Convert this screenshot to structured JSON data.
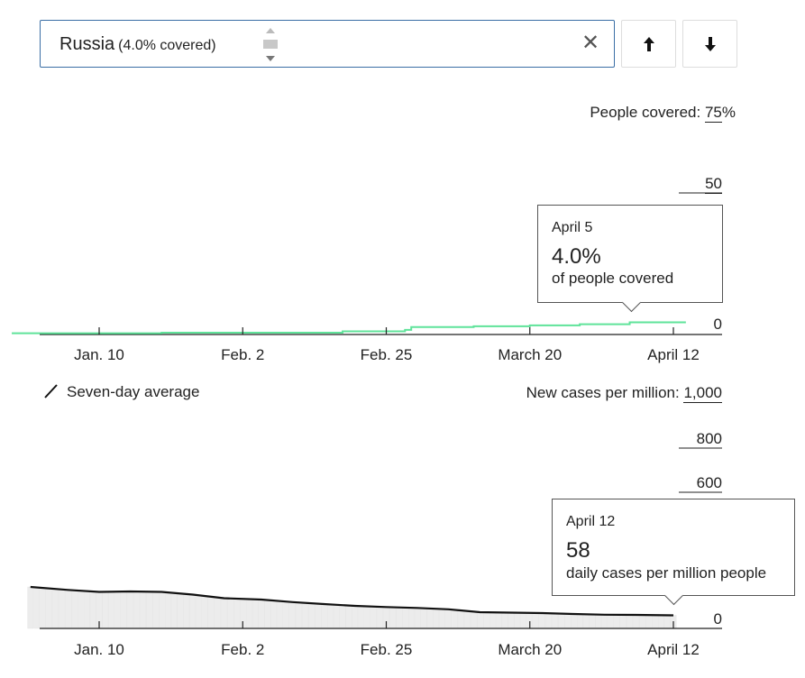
{
  "selector": {
    "country": "Russia",
    "covered_note": "(4.0% covered)",
    "clear_icon": "close-icon",
    "up_icon": "arrow-up-icon",
    "down_icon": "arrow-down-icon"
  },
  "colors": {
    "coverage_line": "#5fe39a",
    "cases_line": "#111111",
    "cases_fill": "#ececec",
    "axis": "#222222",
    "select_border": "#3a6ea5"
  },
  "vaccination_chart": {
    "label_prefix": "People covered:",
    "label_value": "75",
    "label_unit": "%",
    "gridline_label": "50",
    "baseline_label": "0",
    "tooltip": {
      "date": "April 5",
      "value": "4.0%",
      "description": "of people covered"
    }
  },
  "cases_chart": {
    "legend_label": "Seven-day average",
    "label_prefix": "New cases per million:",
    "label_value": "1,000",
    "gridline_800": "800",
    "gridline_600": "600",
    "baseline_label": "0",
    "tooltip": {
      "date": "April 12",
      "value": "58",
      "description": "daily cases per million people"
    }
  },
  "x_ticks": [
    "Jan. 10",
    "Feb. 2",
    "Feb. 25",
    "March 20",
    "April 12"
  ],
  "chart_data": [
    {
      "type": "line",
      "ylabel": "People covered",
      "yunit": "%",
      "ylim": [
        0,
        75
      ],
      "y_gridlines": [
        0,
        50
      ],
      "x_ticks": [
        "Jan. 10",
        "Feb. 2",
        "Feb. 25",
        "March 20",
        "April 12"
      ],
      "x": [
        "Dec. 27",
        "Jan. 20",
        "Feb. 10",
        "Feb. 18",
        "Feb. 28",
        "March 1",
        "March 11",
        "March 20",
        "March 28",
        "April 5",
        "April 14"
      ],
      "series": [
        {
          "values": [
            0.1,
            0.3,
            0.3,
            0.8,
            1.3,
            2.3,
            2.6,
            2.9,
            3.3,
            4.0,
            4.0
          ]
        }
      ],
      "annotations": [
        {
          "x": "April 5",
          "y": 4.0,
          "text": "4.0% of people covered"
        }
      ]
    },
    {
      "type": "area",
      "ylabel": "New cases per million",
      "ylim": [
        0,
        1000
      ],
      "y_gridlines": [
        0,
        600,
        800
      ],
      "x_ticks": [
        "Jan. 10",
        "Feb. 2",
        "Feb. 25",
        "March 20",
        "April 12"
      ],
      "legend": [
        "Seven-day average"
      ],
      "x": [
        "Dec. 30",
        "Jan. 5",
        "Jan. 10",
        "Jan. 15",
        "Jan. 20",
        "Jan. 25",
        "Jan. 30",
        "Feb. 5",
        "Feb. 10",
        "Feb. 15",
        "Feb. 20",
        "Feb. 25",
        "March 2",
        "March 7",
        "March 12",
        "March 17",
        "March 22",
        "March 27",
        "April 1",
        "April 6",
        "April 12"
      ],
      "series": [
        {
          "name": "Seven-day average",
          "values": [
            184,
            171,
            162,
            164,
            162,
            150,
            134,
            128,
            117,
            108,
            100,
            95,
            91,
            85,
            72,
            70,
            68,
            64,
            61,
            60,
            58
          ]
        }
      ],
      "annotations": [
        {
          "x": "April 12",
          "y": 58,
          "text": "58 daily cases per million people"
        }
      ]
    }
  ]
}
